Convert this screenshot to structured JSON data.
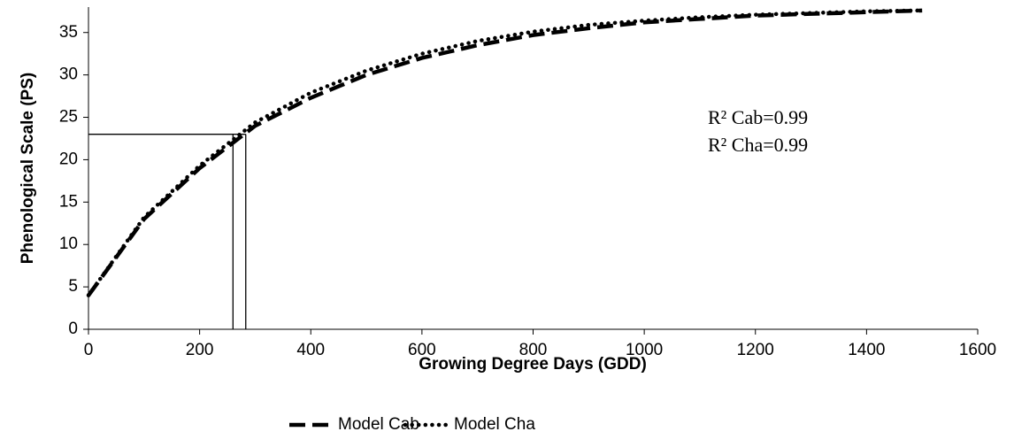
{
  "chart_data": {
    "type": "line",
    "x_label": "Growing Degree Days (GDD)",
    "y_label": "Phenological Scale (PS)",
    "x": [
      0,
      100,
      200,
      300,
      400,
      500,
      600,
      700,
      800,
      900,
      1000,
      1100,
      1200,
      1300,
      1400,
      1500
    ],
    "series": [
      {
        "name": "Model Cab",
        "color": "#000000",
        "style": "dashed",
        "values": [
          4,
          13,
          19,
          24,
          27.3,
          30,
          32,
          33.5,
          34.7,
          35.5,
          36.2,
          36.6,
          37,
          37.2,
          37.4,
          37.6
        ]
      },
      {
        "name": "Model Cha",
        "color": "#000000",
        "style": "dotted",
        "values": [
          4,
          13.2,
          19.3,
          24.4,
          27.9,
          30.5,
          32.5,
          34,
          35.1,
          35.9,
          36.4,
          36.8,
          37.1,
          37.3,
          37.5,
          37.6
        ]
      }
    ],
    "reference_lines": {
      "y": 23,
      "x": [
        260,
        283
      ]
    },
    "annotations": [
      "R² Cab=0.99",
      "R² Cha=0.99"
    ],
    "xlim": [
      0,
      1600
    ],
    "xticks": [
      0,
      200,
      400,
      600,
      800,
      1000,
      1200,
      1400,
      1600
    ],
    "ylim": [
      0,
      38
    ],
    "yticks": [
      0,
      5,
      10,
      15,
      20,
      25,
      30,
      35
    ],
    "grid": false,
    "legend": "bottom"
  }
}
